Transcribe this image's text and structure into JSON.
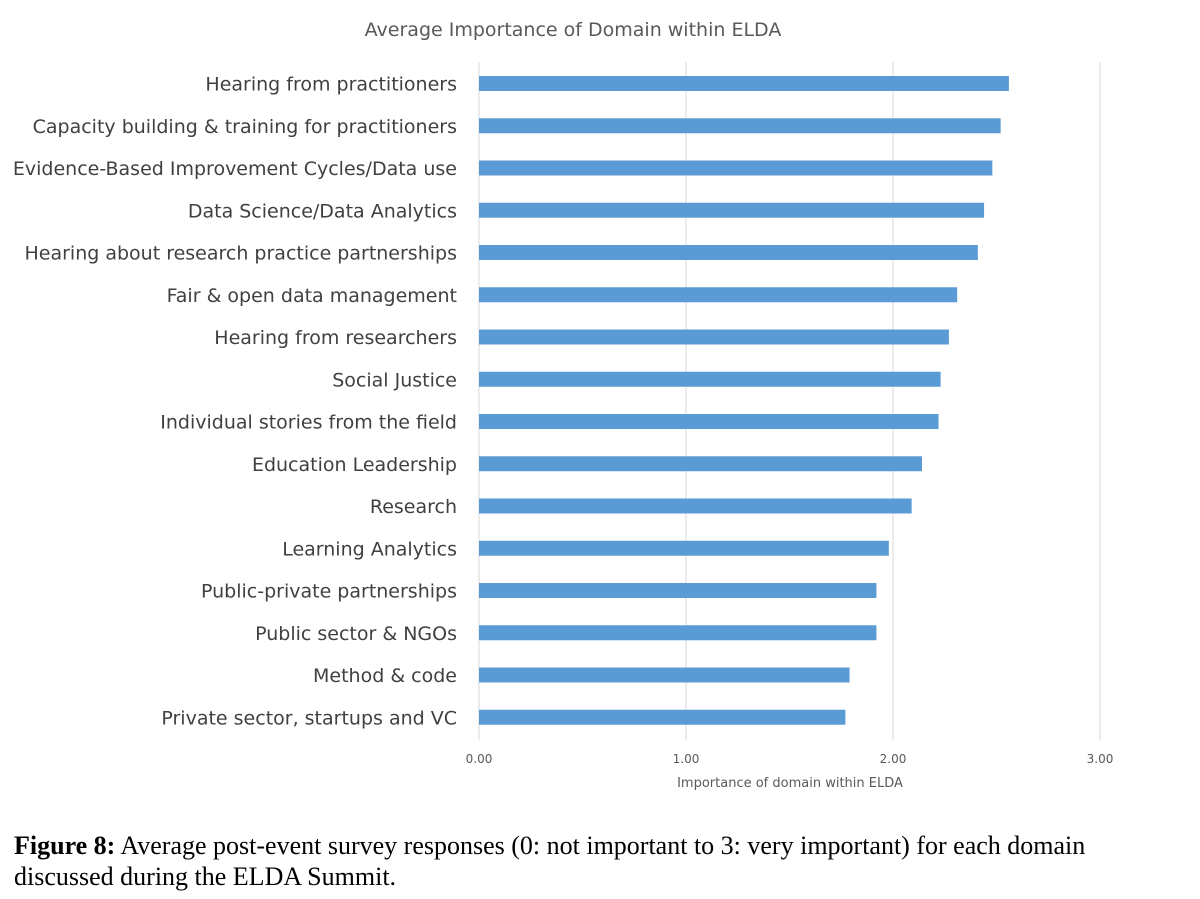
{
  "chart_data": {
    "type": "bar",
    "orientation": "horizontal",
    "title": "Average Importance of Domain within ELDA",
    "xlabel": "Importance of domain within ELDA",
    "ylabel": "",
    "xlim": [
      0,
      3
    ],
    "ticks": [
      0,
      1,
      2,
      3
    ],
    "tick_labels": [
      "0.00",
      "1.00",
      "2.00",
      "3.00"
    ],
    "grid": true,
    "legend": "none",
    "bar_color": "#5b9bd5",
    "categories": [
      "Hearing from practitioners",
      "Capacity building & training for practitioners",
      "Evidence-Based Improvement Cycles/Data use",
      "Data Science/Data Analytics",
      "Hearing about research practice partnerships",
      "Fair & open data management",
      "Hearing from researchers",
      "Social Justice",
      "Individual stories from the field",
      "Education Leadership",
      "Research",
      "Learning Analytics",
      "Public-private partnerships",
      "Public sector & NGOs",
      "Method & code",
      "Private sector, startups and VC"
    ],
    "values": [
      2.56,
      2.52,
      2.48,
      2.44,
      2.41,
      2.31,
      2.27,
      2.23,
      2.22,
      2.14,
      2.09,
      1.98,
      1.92,
      1.92,
      1.79,
      1.77
    ]
  },
  "caption": {
    "label": "Figure 8:",
    "text": " Average post-event survey responses (0: not important to 3: very important) for each domain discussed during the ELDA Summit."
  }
}
